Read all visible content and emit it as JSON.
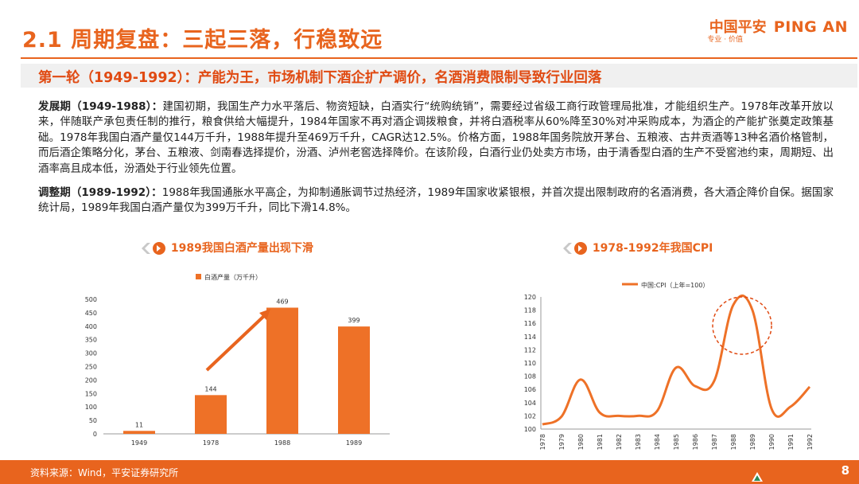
{
  "header": {
    "title": "2.1 周期复盘：三起三落，行稳致远",
    "logo_cn": "中国平安",
    "logo_en": "PING AN",
    "logo_tag": "专业 · 价值"
  },
  "subtitle": "第一轮（1949-1992）：产能为王，市场机制下酒企扩产调价，名酒消费限制导致行业回落",
  "paragraphs": {
    "p1_lead": "发展期（1949-1988）：",
    "p1_body": "建国初期，我国生产力水平落后、物资短缺，白酒实行“统购统销”，需要经过省级工商行政管理局批准，才能组织生产。1978年改革开放以来，伴随联产承包责任制的推行，粮食供给大幅提升，1984年国家不再对酒企调拨粮食，并将白酒税率从60%降至30%对冲采购成本，为酒企的产能扩张奠定政策基础。1978年我国白酒产量仅144万千升，1988年提升至469万千升，CAGR达12.5%。价格方面，1988年国务院放开茅台、五粮液、古井贡酒等13种名酒价格管制，而后酒企策略分化，茅台、五粮液、剑南春选择提价，汾酒、泸州老窖选择降价。在该阶段，白酒行业仍处卖方市场，由于清香型白酒的生产不受窖池约束，周期短、出酒率高且成本低，汾酒处于行业领先位置。",
    "p2_lead": "调整期（1989-1992）：",
    "p2_body": "1988年我国通胀水平高企，为抑制通胀调节过热经济，1989年国家收紧银根，并首次提出限制政府的名酒消费，各大酒企降价自保。据国家统计局，1989年我国白酒产量仅为399万千升，同比下滑14.8%。"
  },
  "charts": {
    "left_heading": "1989我国白酒产量出现下滑",
    "right_heading": "1978-1992年我国CPI"
  },
  "chart_data": [
    {
      "type": "bar",
      "title": "1989我国白酒产量出现下滑",
      "legend": "白酒产量（万千升）",
      "categories": [
        "1949",
        "1978",
        "1988",
        "1989"
      ],
      "values": [
        11,
        144,
        469,
        399
      ],
      "y_ticks": [
        "0",
        "50",
        "100",
        "150",
        "200",
        "250",
        "300",
        "350",
        "400",
        "450",
        "500"
      ],
      "ylim": [
        0,
        500
      ],
      "color": "#ee7127",
      "annotation": "arrow from 1978 to 1988"
    },
    {
      "type": "line",
      "title": "1978-1992年我国CPI",
      "legend": "中国:CPI（上年=100）",
      "x": [
        "1978",
        "1979",
        "1980",
        "1981",
        "1982",
        "1983",
        "1984",
        "1985",
        "1986",
        "1987",
        "1988",
        "1989",
        "1990",
        "1991",
        "1992"
      ],
      "values": [
        100.7,
        101.9,
        107.5,
        102.5,
        102.0,
        102.0,
        102.7,
        109.3,
        106.5,
        107.3,
        118.8,
        118.0,
        103.1,
        103.4,
        106.4
      ],
      "y_ticks": [
        "100",
        "102",
        "104",
        "106",
        "108",
        "110",
        "112",
        "114",
        "116",
        "118",
        "120"
      ],
      "ylim": [
        100,
        120
      ],
      "color": "#ee7127",
      "annotation": "circle around 1988-1989 peak"
    }
  ],
  "footer": {
    "source": "资料来源：Wind，平安证券研究所",
    "page": "8"
  }
}
